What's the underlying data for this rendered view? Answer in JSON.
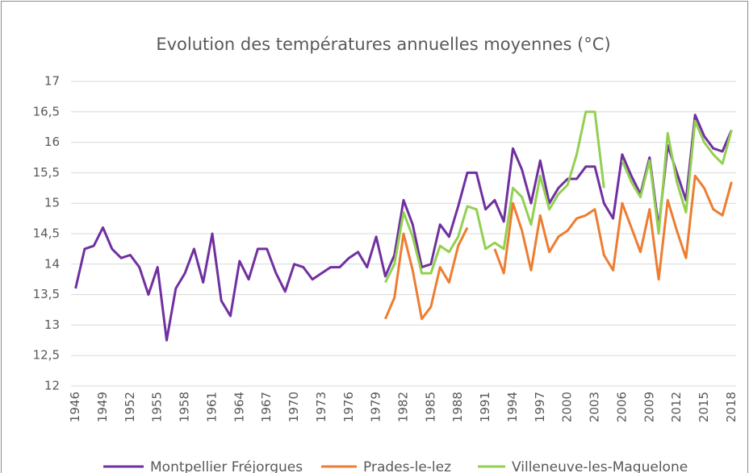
{
  "chart_data": {
    "type": "line",
    "title": "Evolution des températures annuelles moyennes (°C)",
    "categories": [
      "1946",
      null,
      null,
      "1949",
      null,
      null,
      "1952",
      null,
      null,
      "1955",
      null,
      null,
      "1958",
      null,
      null,
      "1961",
      null,
      null,
      "1964",
      null,
      null,
      "1967",
      null,
      null,
      "1970",
      null,
      null,
      "1973",
      null,
      null,
      "1976",
      null,
      null,
      "1979",
      null,
      null,
      "1982",
      null,
      null,
      "1985",
      null,
      null,
      "1988",
      null,
      null,
      "1991",
      null,
      null,
      "1994",
      null,
      null,
      "1997",
      null,
      null,
      "2000",
      null,
      null,
      "2003",
      null,
      null,
      "2006",
      null,
      null,
      "2009",
      null,
      null,
      "2012",
      null,
      null,
      "2015",
      null,
      null,
      "2018"
    ],
    "series": [
      {
        "name": "Montpellier Fréjorgues",
        "color": "#7030a0",
        "values": [
          13.6,
          14.25,
          14.3,
          14.6,
          14.25,
          14.1,
          14.15,
          13.95,
          13.5,
          13.95,
          12.75,
          13.6,
          13.85,
          14.25,
          13.7,
          14.5,
          13.4,
          13.15,
          14.05,
          13.75,
          14.25,
          14.25,
          13.85,
          13.55,
          14.0,
          13.95,
          13.75,
          13.85,
          13.95,
          13.95,
          14.1,
          14.2,
          13.95,
          14.45,
          13.8,
          14.15,
          15.05,
          14.65,
          13.95,
          14.0,
          14.65,
          14.45,
          14.95,
          15.5,
          15.5,
          14.9,
          15.05,
          14.7,
          15.9,
          15.55,
          15.0,
          15.7,
          15.0,
          15.25,
          15.4,
          15.4,
          15.6,
          15.6,
          15.0,
          14.75,
          15.8,
          15.45,
          15.15,
          15.75,
          14.6,
          15.95,
          15.5,
          15.05,
          16.45,
          16.1,
          15.9,
          15.85,
          16.2
        ]
      },
      {
        "name": "Prades-le-lez",
        "color": "#ed7d31",
        "values": [
          null,
          null,
          null,
          null,
          null,
          null,
          null,
          null,
          null,
          null,
          null,
          null,
          null,
          null,
          null,
          null,
          null,
          null,
          null,
          null,
          null,
          null,
          null,
          null,
          null,
          null,
          null,
          null,
          null,
          null,
          null,
          null,
          null,
          null,
          13.1,
          13.45,
          14.5,
          13.9,
          13.1,
          13.3,
          13.95,
          13.7,
          14.3,
          14.6,
          null,
          null,
          14.25,
          13.85,
          15.0,
          14.55,
          13.9,
          14.8,
          14.2,
          14.45,
          14.55,
          14.75,
          14.8,
          14.9,
          14.15,
          13.9,
          15.0,
          14.6,
          14.2,
          14.9,
          13.75,
          15.05,
          14.55,
          14.1,
          15.45,
          15.25,
          14.9,
          14.8,
          15.35
        ]
      },
      {
        "name": "Villeneuve-les-Maguelone",
        "color": "#92d050",
        "values": [
          null,
          null,
          null,
          null,
          null,
          null,
          null,
          null,
          null,
          null,
          null,
          null,
          null,
          null,
          null,
          null,
          null,
          null,
          null,
          null,
          null,
          null,
          null,
          null,
          null,
          null,
          null,
          null,
          null,
          null,
          null,
          null,
          null,
          null,
          13.7,
          14.0,
          14.85,
          14.45,
          13.85,
          13.85,
          14.3,
          14.2,
          14.45,
          14.95,
          14.9,
          14.25,
          14.35,
          14.25,
          15.25,
          15.1,
          14.65,
          15.45,
          14.9,
          15.15,
          15.3,
          15.8,
          16.5,
          16.5,
          15.25,
          null,
          15.7,
          15.35,
          15.1,
          15.7,
          14.5,
          16.15,
          15.35,
          14.85,
          16.35,
          16.0,
          15.8,
          15.65,
          16.2
        ]
      }
    ],
    "ylim": [
      12,
      17
    ],
    "yticks": [
      12,
      {
        "value": 12.5,
        "label": "12,5"
      },
      13,
      {
        "value": 13.5,
        "label": "13,5"
      },
      14,
      {
        "value": 14.5,
        "label": "14,5"
      },
      15,
      {
        "value": 15.5,
        "label": "15,5"
      },
      16,
      {
        "value": 16.5,
        "label": "16,5"
      },
      17
    ],
    "grid": true,
    "legend": "bottom"
  }
}
